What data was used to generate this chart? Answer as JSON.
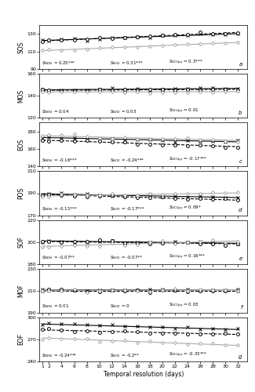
{
  "panels": [
    {
      "label": "SOS",
      "panel_id": "a",
      "ylim": [
        90,
        140
      ],
      "yticks": [
        90,
        110,
        130
      ],
      "ndvi_base": 122.5,
      "evi2_base": 122.0,
      "gcc_base": 111.0,
      "ndvi_slope": 0.25,
      "evi2_slope": 0.31,
      "gcc_slope": 0.3,
      "ndvi_sig": "***",
      "evi2_sig": "***",
      "gcc_sig": "***"
    },
    {
      "label": "MOS",
      "panel_id": "b",
      "ylim": [
        120,
        160
      ],
      "yticks": [
        120,
        140,
        160
      ],
      "ndvi_base": 145.5,
      "evi2_base": 145.0,
      "gcc_base": 143.5,
      "ndvi_slope": 0.04,
      "evi2_slope": 0.03,
      "gcc_slope": 0.01,
      "ndvi_sig": "",
      "evi2_sig": "",
      "gcc_sig": ""
    },
    {
      "label": "EOS",
      "panel_id": "c",
      "ylim": [
        140,
        190
      ],
      "yticks": [
        140,
        160,
        180
      ],
      "ndvi_base": 173.0,
      "evi2_base": 170.0,
      "gcc_base": 175.0,
      "ndvi_slope": -0.16,
      "evi2_slope": -0.24,
      "gcc_slope": -0.17,
      "ndvi_sig": "***",
      "evi2_sig": "***",
      "gcc_sig": "***"
    },
    {
      "label": "POS",
      "panel_id": "d",
      "ylim": [
        170,
        210
      ],
      "yticks": [
        170,
        190,
        210
      ],
      "ndvi_base": 189.5,
      "evi2_base": 189.0,
      "gcc_base": 187.5,
      "ndvi_slope": -0.11,
      "evi2_slope": -0.17,
      "gcc_slope": 0.09,
      "ndvi_sig": "***",
      "evi2_sig": "***",
      "gcc_sig": "*"
    },
    {
      "label": "SOF",
      "panel_id": "e",
      "ylim": [
        180,
        220
      ],
      "yticks": [
        180,
        200,
        220
      ],
      "ndvi_base": 201.0,
      "evi2_base": 200.5,
      "gcc_base": 196.0,
      "ndvi_slope": -0.07,
      "evi2_slope": -0.07,
      "gcc_slope": 0.16,
      "ndvi_sig": "**",
      "evi2_sig": "**",
      "gcc_sig": "***"
    },
    {
      "label": "MOF",
      "panel_id": "f",
      "ylim": [
        190,
        230
      ],
      "yticks": [
        190,
        210,
        230
      ],
      "ndvi_base": 210.5,
      "evi2_base": 210.0,
      "gcc_base": 210.0,
      "ndvi_slope": 0.01,
      "evi2_slope": 0.0,
      "gcc_slope": 0.03,
      "ndvi_sig": "",
      "evi2_sig": "",
      "gcc_sig": ""
    },
    {
      "label": "EOF",
      "panel_id": "g",
      "ylim": [
        240,
        300
      ],
      "yticks": [
        240,
        270,
        300
      ],
      "ndvi_base": 291.0,
      "evi2_base": 283.0,
      "gcc_base": 272.0,
      "ndvi_slope": -0.24,
      "evi2_slope": -0.2,
      "gcc_slope": -0.33,
      "ndvi_sig": "***",
      "evi2_sig": "**",
      "gcc_sig": "***"
    }
  ],
  "x_values": [
    1,
    2,
    4,
    6,
    8,
    10,
    12,
    14,
    16,
    18,
    20,
    22,
    24,
    26,
    28,
    30,
    32
  ],
  "xticks": [
    1,
    2,
    4,
    6,
    8,
    10,
    12,
    14,
    16,
    18,
    20,
    22,
    24,
    26,
    28,
    30,
    32
  ],
  "ndvi_color": "#000000",
  "evi2_color": "#000000",
  "gcc_color": "#aaaaaa",
  "figure_width": 3.25,
  "figure_height": 5.0
}
